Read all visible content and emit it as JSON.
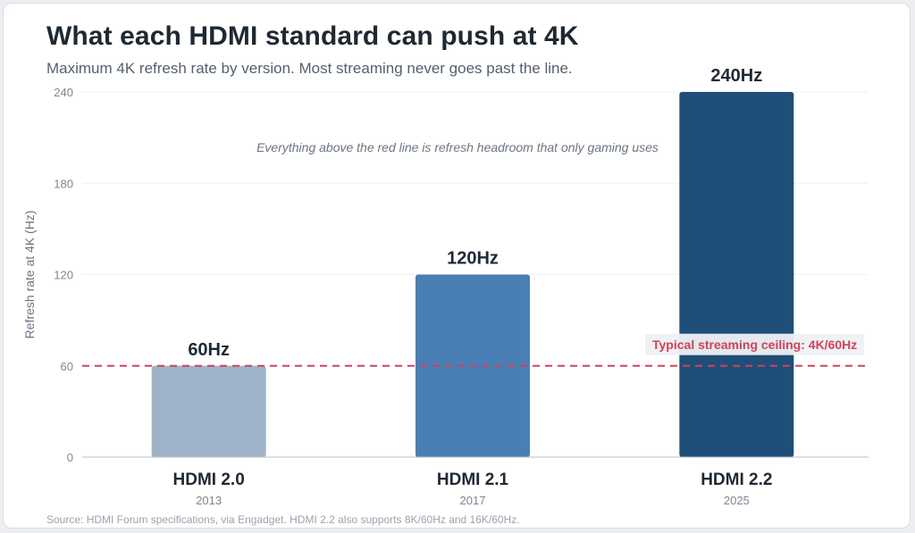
{
  "header": {
    "title": "What each HDMI standard can push at 4K",
    "subtitle": "Maximum 4K refresh rate by version. Most streaming never goes past the line."
  },
  "footer": {
    "source": "Source: HDMI Forum specifications, via Engadget. HDMI 2.2 also supports 8K/60Hz and 16K/60Hz."
  },
  "colors": {
    "bar_2_0": "#9fb3c8",
    "bar_2_1": "#4a7fb5",
    "bar_2_2": "#1f4e79",
    "reference_line": "#d0425a",
    "text_dark": "#1f2933",
    "text_muted": "#6b7580",
    "grid": "#eef0f3"
  },
  "chart_data": {
    "type": "bar",
    "title": "What each HDMI standard can push at 4K",
    "subtitle": "Maximum 4K refresh rate by version. Most streaming never goes past the line.",
    "xlabel": "",
    "ylabel": "Refresh rate at 4K (Hz)",
    "ylim": [
      0,
      240
    ],
    "yticks": [
      0,
      60,
      120,
      180,
      240
    ],
    "grid": true,
    "categories": [
      "HDMI 2.0",
      "HDMI 2.1",
      "HDMI 2.2"
    ],
    "category_years": [
      "2013",
      "2017",
      "2025"
    ],
    "values": [
      60,
      120,
      240
    ],
    "value_labels": [
      "60Hz",
      "120Hz",
      "240Hz"
    ],
    "reference_line": {
      "value": 60,
      "label": "Typical streaming ceiling: 4K/60Hz",
      "style": "dashed"
    },
    "annotation": "Everything above the red line is refresh headroom that only gaming uses"
  }
}
